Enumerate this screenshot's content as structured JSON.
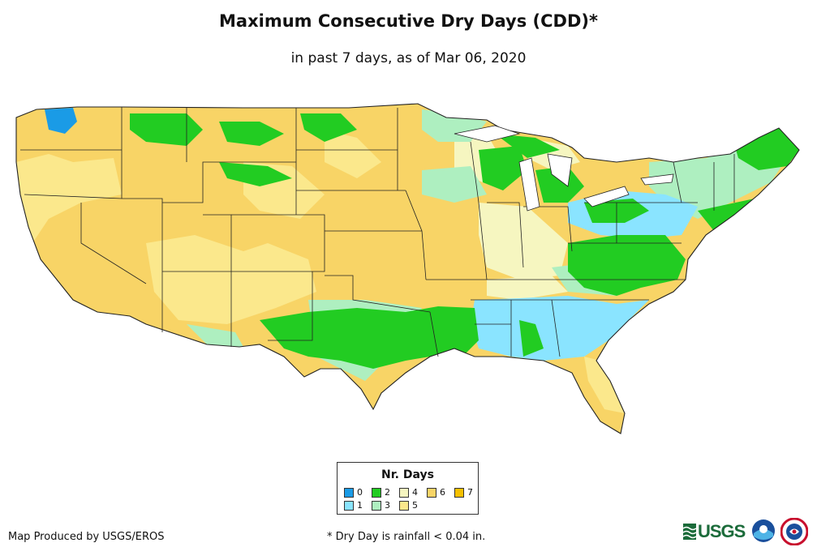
{
  "title": "Maximum Consecutive Dry Days (CDD)*",
  "subtitle": "in past 7 days, as of Mar 06, 2020",
  "legend": {
    "title": "Nr. Days",
    "items": [
      {
        "label": "0",
        "color": "#1a9be6"
      },
      {
        "label": "1",
        "color": "#8ae4ff"
      },
      {
        "label": "2",
        "color": "#22cc22"
      },
      {
        "label": "3",
        "color": "#aeefc0"
      },
      {
        "label": "4",
        "color": "#f6f6c0"
      },
      {
        "label": "5",
        "color": "#fbe88c"
      },
      {
        "label": "6",
        "color": "#f8d466"
      },
      {
        "label": "7",
        "color": "#f5c000"
      }
    ]
  },
  "credit": "Map Produced by USGS/EROS",
  "footnote": "* Dry Day is rainfall < 0.04 in.",
  "logos": {
    "usgs": "USGS",
    "noaa": "noaa",
    "nws": "NWS"
  },
  "colors": {
    "border": "#222222"
  }
}
